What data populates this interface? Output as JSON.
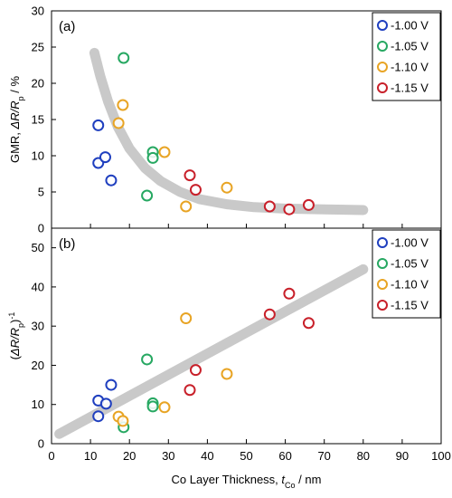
{
  "chart_data": [
    {
      "type": "scatter",
      "panel_label": "(a)",
      "ylabel": {
        "pre": "GMR, ",
        "italic": "ΔR/R",
        "sub": "p",
        "post": " / %"
      },
      "xlim": [
        0,
        100
      ],
      "ylim": [
        0,
        30
      ],
      "yticks": [
        "0",
        "5",
        "10",
        "15",
        "20",
        "25",
        "30"
      ],
      "legend_position": "top-right",
      "series": [
        {
          "name": "-1.00 V",
          "color": "#1f3fbf",
          "points": [
            [
              12,
              14.2
            ],
            [
              12,
              9.0
            ],
            [
              13.8,
              9.8
            ],
            [
              15.3,
              6.6
            ]
          ]
        },
        {
          "name": "-1.05 V",
          "color": "#27a862",
          "points": [
            [
              18.5,
              23.5
            ],
            [
              26,
              10.5
            ],
            [
              26,
              9.7
            ],
            [
              24.5,
              4.5
            ]
          ]
        },
        {
          "name": "-1.10 V",
          "color": "#e8a424",
          "points": [
            [
              18.3,
              17.0
            ],
            [
              17.2,
              14.5
            ],
            [
              29,
              10.5
            ],
            [
              34.5,
              3.0
            ],
            [
              45,
              5.6
            ]
          ]
        },
        {
          "name": "-1.15 V",
          "color": "#c8202a",
          "points": [
            [
              35.5,
              7.3
            ],
            [
              37,
              5.3
            ],
            [
              56,
              3.0
            ],
            [
              61,
              2.6
            ],
            [
              66,
              3.2
            ]
          ]
        }
      ],
      "trend": {
        "type": "curve",
        "points": [
          [
            11,
            24.2
          ],
          [
            12.5,
            21.0
          ],
          [
            14.5,
            17.5
          ],
          [
            17,
            14.0
          ],
          [
            20,
            11.0
          ],
          [
            24,
            8.3
          ],
          [
            28,
            6.5
          ],
          [
            33,
            5.0
          ],
          [
            38,
            4.0
          ],
          [
            45,
            3.3
          ],
          [
            52,
            2.9
          ],
          [
            60,
            2.7
          ],
          [
            70,
            2.6
          ],
          [
            80,
            2.5
          ]
        ]
      }
    },
    {
      "type": "scatter",
      "panel_label": "(b)",
      "ylabel": {
        "pre": "(",
        "italic": "ΔR/R",
        "sub": "p",
        "post": ")",
        "sup": "-1"
      },
      "xlabel": {
        "pre": "Co Layer Thickness, ",
        "italic": "t",
        "sub": "Co",
        "post": " / nm"
      },
      "xlim": [
        0,
        100
      ],
      "ylim": [
        0,
        55
      ],
      "xticks": [
        "0",
        "10",
        "20",
        "30",
        "40",
        "50",
        "60",
        "70",
        "80",
        "90",
        "100"
      ],
      "yticks": [
        "0",
        "10",
        "20",
        "30",
        "40",
        "50"
      ],
      "legend_position": "top-right",
      "series": [
        {
          "name": "-1.00 V",
          "color": "#1f3fbf",
          "points": [
            [
              12,
              11.0
            ],
            [
              14,
              10.2
            ],
            [
              12,
              7.0
            ],
            [
              15.3,
              15.0
            ]
          ]
        },
        {
          "name": "-1.05 V",
          "color": "#27a862",
          "points": [
            [
              24.5,
              21.5
            ],
            [
              26,
              10.3
            ],
            [
              26,
              9.5
            ],
            [
              18.5,
              4.2
            ]
          ]
        },
        {
          "name": "-1.10 V",
          "color": "#e8a424",
          "points": [
            [
              17.2,
              6.9
            ],
            [
              18.3,
              5.8
            ],
            [
              29,
              9.3
            ],
            [
              34.5,
              32.0
            ],
            [
              45,
              17.8
            ]
          ]
        },
        {
          "name": "-1.15 V",
          "color": "#c8202a",
          "points": [
            [
              35.5,
              13.7
            ],
            [
              37,
              18.8
            ],
            [
              56,
              33.0
            ],
            [
              61,
              38.3
            ],
            [
              66,
              30.8
            ]
          ]
        }
      ],
      "trend": {
        "type": "line",
        "points": [
          [
            2,
            2.5
          ],
          [
            80,
            44.5
          ]
        ]
      }
    }
  ]
}
